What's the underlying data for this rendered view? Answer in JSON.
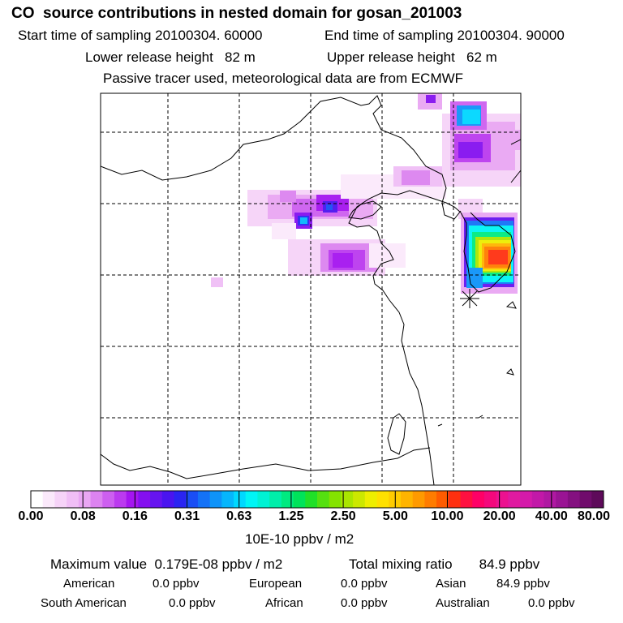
{
  "header": {
    "title": "CO  source contributions in nested domain for gosan_201003",
    "start_time": "Start time of sampling 20100304. 60000",
    "end_time": "End time of sampling 20100304. 90000",
    "lower_height": "Lower release height   82 m",
    "upper_height": "Upper release height   62 m",
    "tracer_note": "Passive tracer used, meteorological data are from ECMWF"
  },
  "colorbar": {
    "ticks": [
      "0.00",
      "0.08",
      "0.16",
      "0.31",
      "0.63",
      "1.25",
      "2.50",
      "5.00",
      "10.00",
      "20.00",
      "40.00",
      "80.00"
    ],
    "unit": "10E-10 ppbv / m2",
    "colors": [
      "#ffffff",
      "#fbe9fb",
      "#f6d3f8",
      "#f0bef6",
      "#e9a6f3",
      "#dc83f0",
      "#cd5ff0",
      "#bb3aef",
      "#a515f0",
      "#8410f0",
      "#6614f0",
      "#4a14f0",
      "#2a24f2",
      "#1a4ef5",
      "#1472f7",
      "#0e93f9",
      "#06b6fc",
      "#00d8ff",
      "#00f5f5",
      "#00f2d4",
      "#00eeaa",
      "#00ea80",
      "#00e35a",
      "#20e028",
      "#55e010",
      "#84e300",
      "#aae600",
      "#cce800",
      "#eeee00",
      "#ffe000",
      "#ffcc00",
      "#ffb400",
      "#ff9a00",
      "#ff7c00",
      "#ff5c00",
      "#ff3010",
      "#ff1040",
      "#ff0066",
      "#f4087c",
      "#ec1290",
      "#e01aa0",
      "#d41aaa",
      "#c218a8",
      "#b018a2",
      "#9a1494",
      "#841080",
      "#700c6c",
      "#5e0a5a"
    ]
  },
  "summary": {
    "max_value": "Maximum value  0.179E-08 ppbv / m2",
    "total_mixing": "Total mixing ratio       84.9 ppbv",
    "american_label": "American",
    "american_value": "0.0 ppbv",
    "european_label": "European",
    "european_value": "0.0 ppbv",
    "asian_label": "Asian",
    "asian_value": "84.9 ppbv",
    "south_american_label": "South American",
    "south_american_value": "0.0 ppbv",
    "african_label": "African",
    "african_value": "0.0 ppbv",
    "australian_label": "Australian",
    "australian_value": "0.0 ppbv"
  }
}
